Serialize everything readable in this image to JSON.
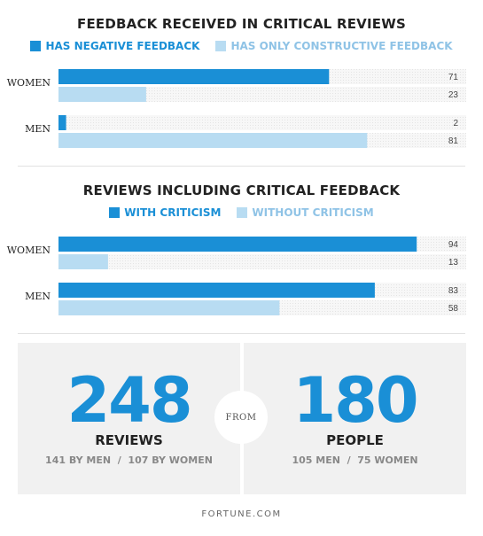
{
  "colors": {
    "dark": "#1a8fd6",
    "light": "#b8dcf2",
    "track": "#f4f4f4",
    "stat_number": "#1a8fd6"
  },
  "chart_data": [
    {
      "type": "bar",
      "orientation": "horizontal",
      "title": "FEEDBACK RECEIVED IN CRITICAL REVIEWS",
      "categories": [
        "WOMEN",
        "MEN"
      ],
      "series": [
        {
          "name": "HAS NEGATIVE FEEDBACK",
          "values": [
            71,
            2
          ]
        },
        {
          "name": "HAS ONLY CONSTRUCTIVE FEEDBACK",
          "values": [
            23,
            81
          ]
        }
      ],
      "xlim": [
        0,
        100
      ],
      "legend": "top-center",
      "grid": false
    },
    {
      "type": "bar",
      "orientation": "horizontal",
      "title": "REVIEWS INCLUDING CRITICAL FEEDBACK",
      "categories": [
        "WOMEN",
        "MEN"
      ],
      "series": [
        {
          "name": "WITH CRITICISM",
          "values": [
            94,
            83
          ]
        },
        {
          "name": "WITHOUT CRITICISM",
          "values": [
            13,
            58
          ]
        }
      ],
      "xlim": [
        0,
        100
      ],
      "legend": "top-center",
      "grid": false
    }
  ],
  "stats": {
    "reviews": {
      "number": "248",
      "label": "REVIEWS",
      "sub": "141 BY MEN  /  107 BY WOMEN"
    },
    "connector": "FROM",
    "people": {
      "number": "180",
      "label": "PEOPLE",
      "sub": "105 MEN  /  75 WOMEN"
    }
  },
  "footer": "FORTUNE.COM"
}
